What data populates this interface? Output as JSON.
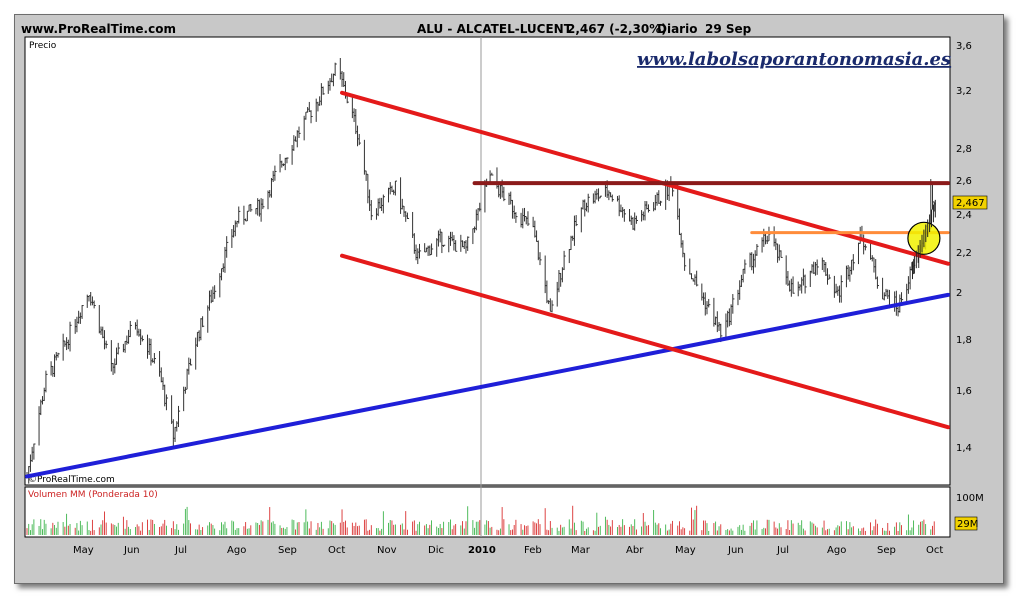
{
  "header": {
    "site": "www.ProRealTime.com",
    "instrument": "ALU - ALCATEL-LUCENT",
    "quote": "2,467 (-2,30%)",
    "period": "Diario",
    "date": "29 Sep"
  },
  "watermark": "www.labolsaporantonomasia.es",
  "copyright": "©ProRealTime.com",
  "price_panel": {
    "label": "Precio",
    "y_ticks": [
      "3,6",
      "3,2",
      "2,8",
      "2,6",
      "2,4",
      "2,2",
      "2",
      "1,8",
      "1,6",
      "1,4"
    ],
    "last_price_label": "2,467"
  },
  "volume_panel": {
    "label": "Volumen MM (Ponderada 10)",
    "y_ticks": [
      "100M"
    ],
    "last_volume_label": "29M"
  },
  "x_ticks": [
    "May",
    "Jun",
    "Jul",
    "Ago",
    "Sep",
    "Oct",
    "Nov",
    "Dic",
    "2010",
    "Feb",
    "Mar",
    "Abr",
    "May",
    "Jun",
    "Jul",
    "Ago",
    "Sep",
    "Oct"
  ],
  "chart_data": {
    "type": "line",
    "y_axis": {
      "ylim": [
        1.33,
        3.65
      ],
      "scale": "log"
    },
    "x_axis": {
      "range": [
        "2009-04-20",
        "2010-10-07"
      ]
    },
    "price_keypoints": [
      {
        "date": "2009-04-20",
        "price": 1.35
      },
      {
        "date": "2009-05-01",
        "price": 1.68
      },
      {
        "date": "2009-05-12",
        "price": 1.82
      },
      {
        "date": "2009-05-26",
        "price": 2.06
      },
      {
        "date": "2009-06-08",
        "price": 1.72
      },
      {
        "date": "2009-06-22",
        "price": 1.92
      },
      {
        "date": "2009-07-06",
        "price": 1.7
      },
      {
        "date": "2009-07-14",
        "price": 1.48
      },
      {
        "date": "2009-07-28",
        "price": 1.86
      },
      {
        "date": "2009-08-06",
        "price": 2.05
      },
      {
        "date": "2009-08-20",
        "price": 2.42
      },
      {
        "date": "2009-09-03",
        "price": 2.5
      },
      {
        "date": "2009-09-20",
        "price": 2.86
      },
      {
        "date": "2009-10-06",
        "price": 3.18
      },
      {
        "date": "2009-10-17",
        "price": 3.42
      },
      {
        "date": "2009-10-29",
        "price": 2.95
      },
      {
        "date": "2009-11-06",
        "price": 2.46
      },
      {
        "date": "2009-11-20",
        "price": 2.6
      },
      {
        "date": "2009-12-03",
        "price": 2.22
      },
      {
        "date": "2009-12-17",
        "price": 2.32
      },
      {
        "date": "2009-12-31",
        "price": 2.26
      },
      {
        "date": "2010-01-14",
        "price": 2.66
      },
      {
        "date": "2010-01-28",
        "price": 2.48
      },
      {
        "date": "2010-02-08",
        "price": 2.36
      },
      {
        "date": "2010-02-15",
        "price": 2.08
      },
      {
        "date": "2010-02-18",
        "price": 1.94
      },
      {
        "date": "2010-02-26",
        "price": 2.22
      },
      {
        "date": "2010-03-10",
        "price": 2.52
      },
      {
        "date": "2010-03-24",
        "price": 2.58
      },
      {
        "date": "2010-04-07",
        "price": 2.4
      },
      {
        "date": "2010-04-20",
        "price": 2.52
      },
      {
        "date": "2010-04-30",
        "price": 2.62
      },
      {
        "date": "2010-05-07",
        "price": 2.2
      },
      {
        "date": "2010-05-18",
        "price": 2.02
      },
      {
        "date": "2010-05-29",
        "price": 1.86
      },
      {
        "date": "2010-06-11",
        "price": 2.16
      },
      {
        "date": "2010-06-25",
        "price": 2.34
      },
      {
        "date": "2010-07-10",
        "price": 2.03
      },
      {
        "date": "2010-07-24",
        "price": 2.22
      },
      {
        "date": "2010-08-04",
        "price": 2.04
      },
      {
        "date": "2010-08-18",
        "price": 2.34
      },
      {
        "date": "2010-08-29",
        "price": 2.06
      },
      {
        "date": "2010-09-08",
        "price": 1.98
      },
      {
        "date": "2010-09-18",
        "price": 2.2
      },
      {
        "date": "2010-09-23",
        "price": 2.3
      },
      {
        "date": "2010-09-27",
        "price": 2.6
      },
      {
        "date": "2010-09-29",
        "price": 2.467
      }
    ],
    "trendlines": [
      {
        "name": "support",
        "color": "#1f1fd8",
        "from": {
          "date": "2009-04-20",
          "price": 1.35
        },
        "to": {
          "date": "2010-10-07",
          "price": 2.04
        }
      },
      {
        "name": "channel-upper",
        "color": "#e41a1a",
        "from": {
          "date": "2009-10-20",
          "price": 3.23
        },
        "to": {
          "date": "2010-10-07",
          "price": 2.19
        }
      },
      {
        "name": "channel-lower",
        "color": "#e41a1a",
        "from": {
          "date": "2009-10-20",
          "price": 2.23
        },
        "to": {
          "date": "2010-10-07",
          "price": 1.51
        }
      },
      {
        "name": "resistance",
        "color": "#8b1a1a",
        "from": {
          "date": "2010-01-05",
          "price": 2.63
        },
        "to": {
          "date": "2010-10-07",
          "price": 2.63
        }
      },
      {
        "name": "breakout-level",
        "color": "#ff8c3a",
        "from": {
          "date": "2010-06-15",
          "price": 2.35
        },
        "to": {
          "date": "2010-10-07",
          "price": 2.35
        }
      }
    ],
    "highlight": {
      "date": "2010-09-23",
      "price": 2.32,
      "color": "#f2f200"
    }
  },
  "colors": {
    "frame": "#c8c8c8",
    "panel": "#ffffff",
    "bars": "#333333",
    "volume_up": "#3cb44b",
    "volume_down": "#d93030",
    "last_label": "#f2d200"
  }
}
